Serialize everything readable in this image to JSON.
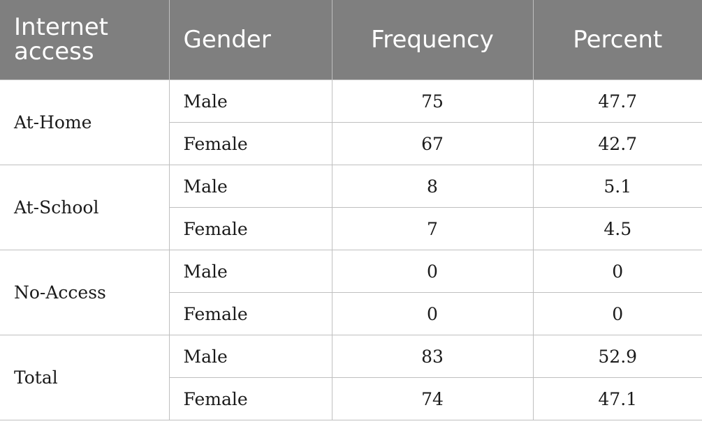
{
  "headers": [
    "Internet access",
    "Gender",
    "Frequency",
    "Percent"
  ],
  "groups": [
    {
      "label": "At-Home",
      "rows": [
        {
          "gender": "Male",
          "frequency": "75",
          "percent": "47.7"
        },
        {
          "gender": "Female",
          "frequency": "67",
          "percent": "42.7"
        }
      ]
    },
    {
      "label": "At-School",
      "rows": [
        {
          "gender": "Male",
          "frequency": "8",
          "percent": "5.1"
        },
        {
          "gender": "Female",
          "frequency": "7",
          "percent": "4.5"
        }
      ]
    },
    {
      "label": "No-Access",
      "rows": [
        {
          "gender": "Male",
          "frequency": "0",
          "percent": "0"
        },
        {
          "gender": "Female",
          "frequency": "0",
          "percent": "0"
        }
      ]
    },
    {
      "label": "Total",
      "rows": [
        {
          "gender": "Male",
          "frequency": "83",
          "percent": "52.9"
        },
        {
          "gender": "Female",
          "frequency": "74",
          "percent": "47.1"
        }
      ]
    }
  ],
  "colors": {
    "header_bg": "#7f7f7f",
    "header_text": "#ffffff",
    "border": "#bfbfbf"
  }
}
